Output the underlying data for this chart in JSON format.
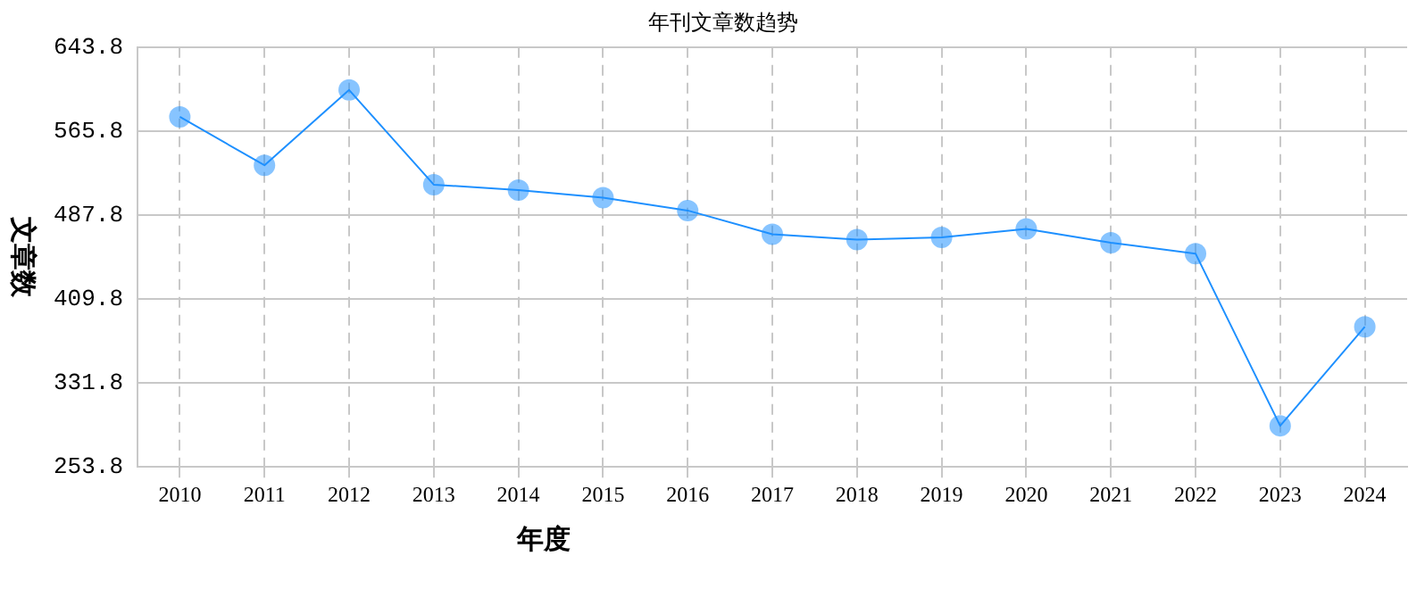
{
  "chart_data": {
    "type": "line",
    "title": "年刊文章数趋势",
    "xlabel": "年度",
    "ylabel": "文章数",
    "categories": [
      "2010",
      "2011",
      "2012",
      "2013",
      "2014",
      "2015",
      "2016",
      "2017",
      "2018",
      "2019",
      "2020",
      "2021",
      "2022",
      "2023",
      "2024"
    ],
    "series": [
      {
        "color": "#1e90ff",
        "values": [
          579,
          534,
          604,
          516,
          511,
          504,
          492,
          470,
          465,
          467,
          475,
          462,
          452,
          292,
          384
        ]
      }
    ],
    "ylim": [
      253.8,
      643.8
    ],
    "yticks": [
      253.8,
      331.8,
      409.8,
      487.8,
      565.8,
      643.8
    ],
    "grid": true,
    "legend": false,
    "marker": "circle",
    "line_style": "solid"
  }
}
